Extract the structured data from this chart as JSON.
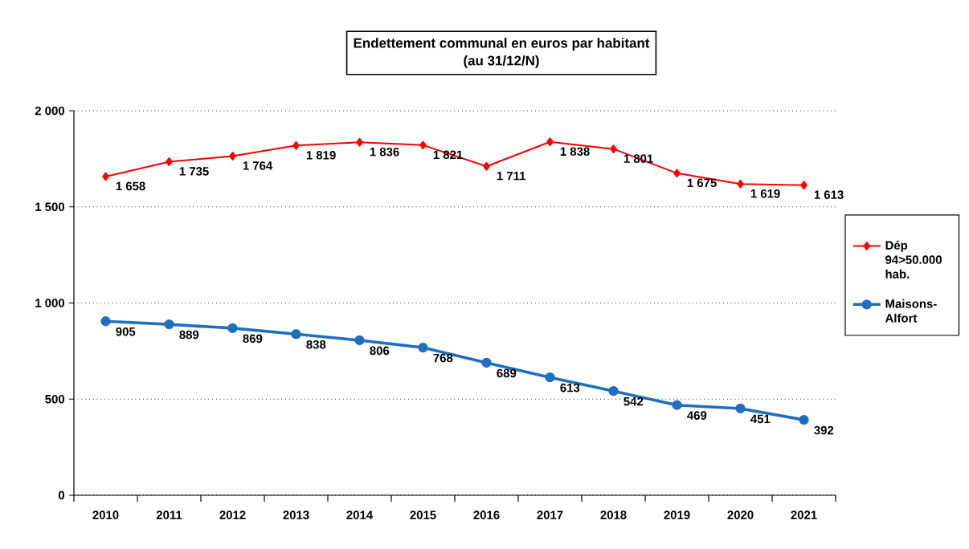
{
  "chart_data": {
    "type": "line",
    "title": "Endettement communal en euros par habitant",
    "subtitle": "(au 31/12/N)",
    "categories": [
      "2010",
      "2011",
      "2012",
      "2013",
      "2014",
      "2015",
      "2016",
      "2017",
      "2018",
      "2019",
      "2020",
      "2021"
    ],
    "series": [
      {
        "name": "Dép 94>50.000 hab.",
        "color": "#ff0000",
        "marker": "diamond",
        "values": [
          1658,
          1735,
          1764,
          1819,
          1836,
          1821,
          1711,
          1838,
          1801,
          1675,
          1619,
          1613
        ],
        "value_labels": [
          "1 658",
          "1 735",
          "1 764",
          "1 819",
          "1 836",
          "1 821",
          "1 711",
          "1 838",
          "1 801",
          "1 675",
          "1 619",
          "1 613"
        ]
      },
      {
        "name": "Maisons-Alfort",
        "color": "#1f6fbf",
        "marker": "circle",
        "values": [
          905,
          889,
          869,
          838,
          806,
          768,
          689,
          613,
          542,
          469,
          451,
          392
        ],
        "value_labels": [
          "905",
          "889",
          "869",
          "838",
          "806",
          "768",
          "689",
          "613",
          "542",
          "469",
          "451",
          "392"
        ]
      }
    ],
    "ylim": [
      0,
      2000
    ],
    "yticks": [
      {
        "value": 0,
        "label": "0"
      },
      {
        "value": 500,
        "label": "500"
      },
      {
        "value": 1000,
        "label": "1 000"
      },
      {
        "value": 1500,
        "label": "1 500"
      },
      {
        "value": 2000,
        "label": "2 000"
      }
    ],
    "grid": "y",
    "legend": "right",
    "line_style": "solid"
  }
}
